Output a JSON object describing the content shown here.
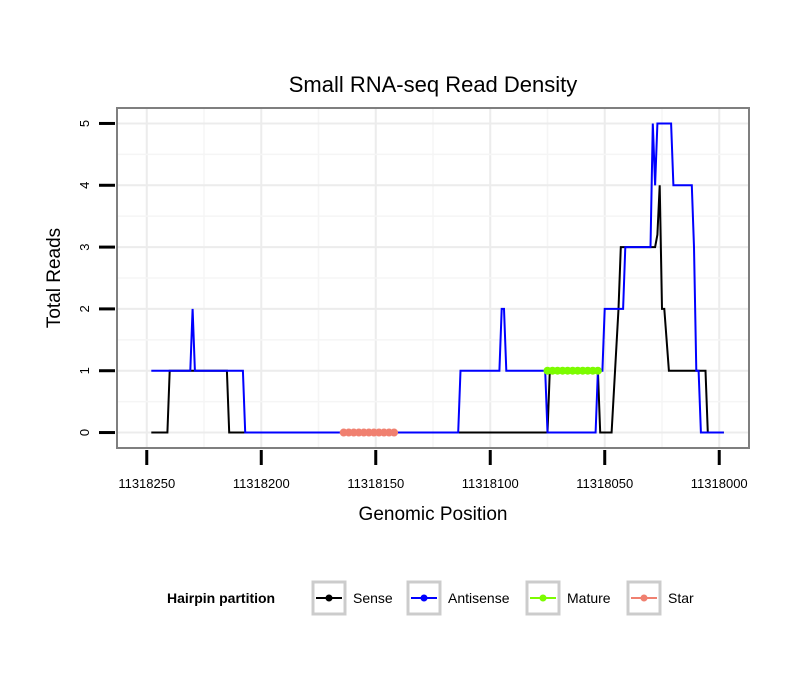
{
  "chart_data": {
    "type": "line",
    "title": "Small RNA-seq Read Density",
    "xlabel": "Genomic Position",
    "ylabel": "Total Reads",
    "x_reversed": true,
    "xlim": [
      11318263,
      11317987
    ],
    "ylim": [
      -0.25,
      5.25
    ],
    "x_ticks": [
      11318250,
      11318200,
      11318150,
      11318100,
      11318050,
      11318000
    ],
    "x_tick_labels": [
      "11318250",
      "11318200",
      "11318150",
      "11318100",
      "11318050",
      "11318000"
    ],
    "y_ticks": [
      0,
      1,
      2,
      3,
      4,
      5
    ],
    "y_tick_labels": [
      "0",
      "1",
      "2",
      "3",
      "4",
      "5"
    ],
    "grid": true,
    "legend": {
      "title": "Hairpin partition",
      "position": "bottom",
      "entries": [
        {
          "label": "Sense",
          "color": "#000000"
        },
        {
          "label": "Antisense",
          "color": "#0000ff"
        },
        {
          "label": "Mature",
          "color": "#7cfc00"
        },
        {
          "label": "Star",
          "color": "#f08070"
        }
      ]
    },
    "series": [
      {
        "name": "Sense",
        "color": "#000000",
        "x": [
          11318248,
          11318241,
          11318240,
          11318215,
          11318214,
          11318005,
          11318004,
          11317998
        ],
        "y": [
          0,
          0,
          1,
          1,
          0,
          0,
          0,
          0
        ],
        "steps": [
          [
            11318248,
            0
          ],
          [
            11318241,
            0
          ],
          [
            11318240,
            1
          ],
          [
            11318215,
            1
          ],
          [
            11318214,
            0
          ],
          [
            11318075,
            0
          ],
          [
            11318074,
            1
          ],
          [
            11318053,
            1
          ],
          [
            11318052,
            0
          ],
          [
            11318047,
            0
          ],
          [
            11318044,
            2
          ],
          [
            11318043,
            3
          ],
          [
            11318028,
            3
          ],
          [
            11318027,
            3.2
          ],
          [
            11318026,
            4
          ],
          [
            11318025,
            2
          ],
          [
            11318024,
            2
          ],
          [
            11318022,
            1
          ],
          [
            11318008,
            1
          ],
          [
            11318006,
            1
          ],
          [
            11318005,
            0
          ],
          [
            11317998,
            0
          ]
        ]
      },
      {
        "name": "Antisense",
        "color": "#0000ff",
        "steps": [
          [
            11318248,
            1
          ],
          [
            11318231,
            1
          ],
          [
            11318230,
            2
          ],
          [
            11318229,
            1
          ],
          [
            11318208,
            1
          ],
          [
            11318207,
            0
          ],
          [
            11318114,
            0
          ],
          [
            11318113,
            1
          ],
          [
            11318096,
            1
          ],
          [
            11318095,
            2
          ],
          [
            11318094,
            2
          ],
          [
            11318093,
            1
          ],
          [
            11318076,
            1
          ],
          [
            11318075,
            0
          ],
          [
            11318054,
            0
          ],
          [
            11318053,
            1
          ],
          [
            11318051,
            1
          ],
          [
            11318050,
            2
          ],
          [
            11318042,
            2
          ],
          [
            11318041,
            3
          ],
          [
            11318030,
            3
          ],
          [
            11318029,
            5
          ],
          [
            11318028,
            4
          ],
          [
            11318027,
            5
          ],
          [
            11318021,
            5
          ],
          [
            11318020,
            4
          ],
          [
            11318012,
            4
          ],
          [
            11318011,
            3
          ],
          [
            11318010,
            1
          ],
          [
            11318009,
            1
          ],
          [
            11318008,
            0
          ],
          [
            11317998,
            0
          ]
        ]
      },
      {
        "name": "Mature",
        "color": "#7cfc00",
        "x": [
          11318075,
          11318053
        ],
        "y": [
          1,
          1
        ]
      },
      {
        "name": "Star",
        "color": "#f08070",
        "x": [
          11318164,
          11318142
        ],
        "y": [
          0,
          0
        ]
      }
    ]
  }
}
